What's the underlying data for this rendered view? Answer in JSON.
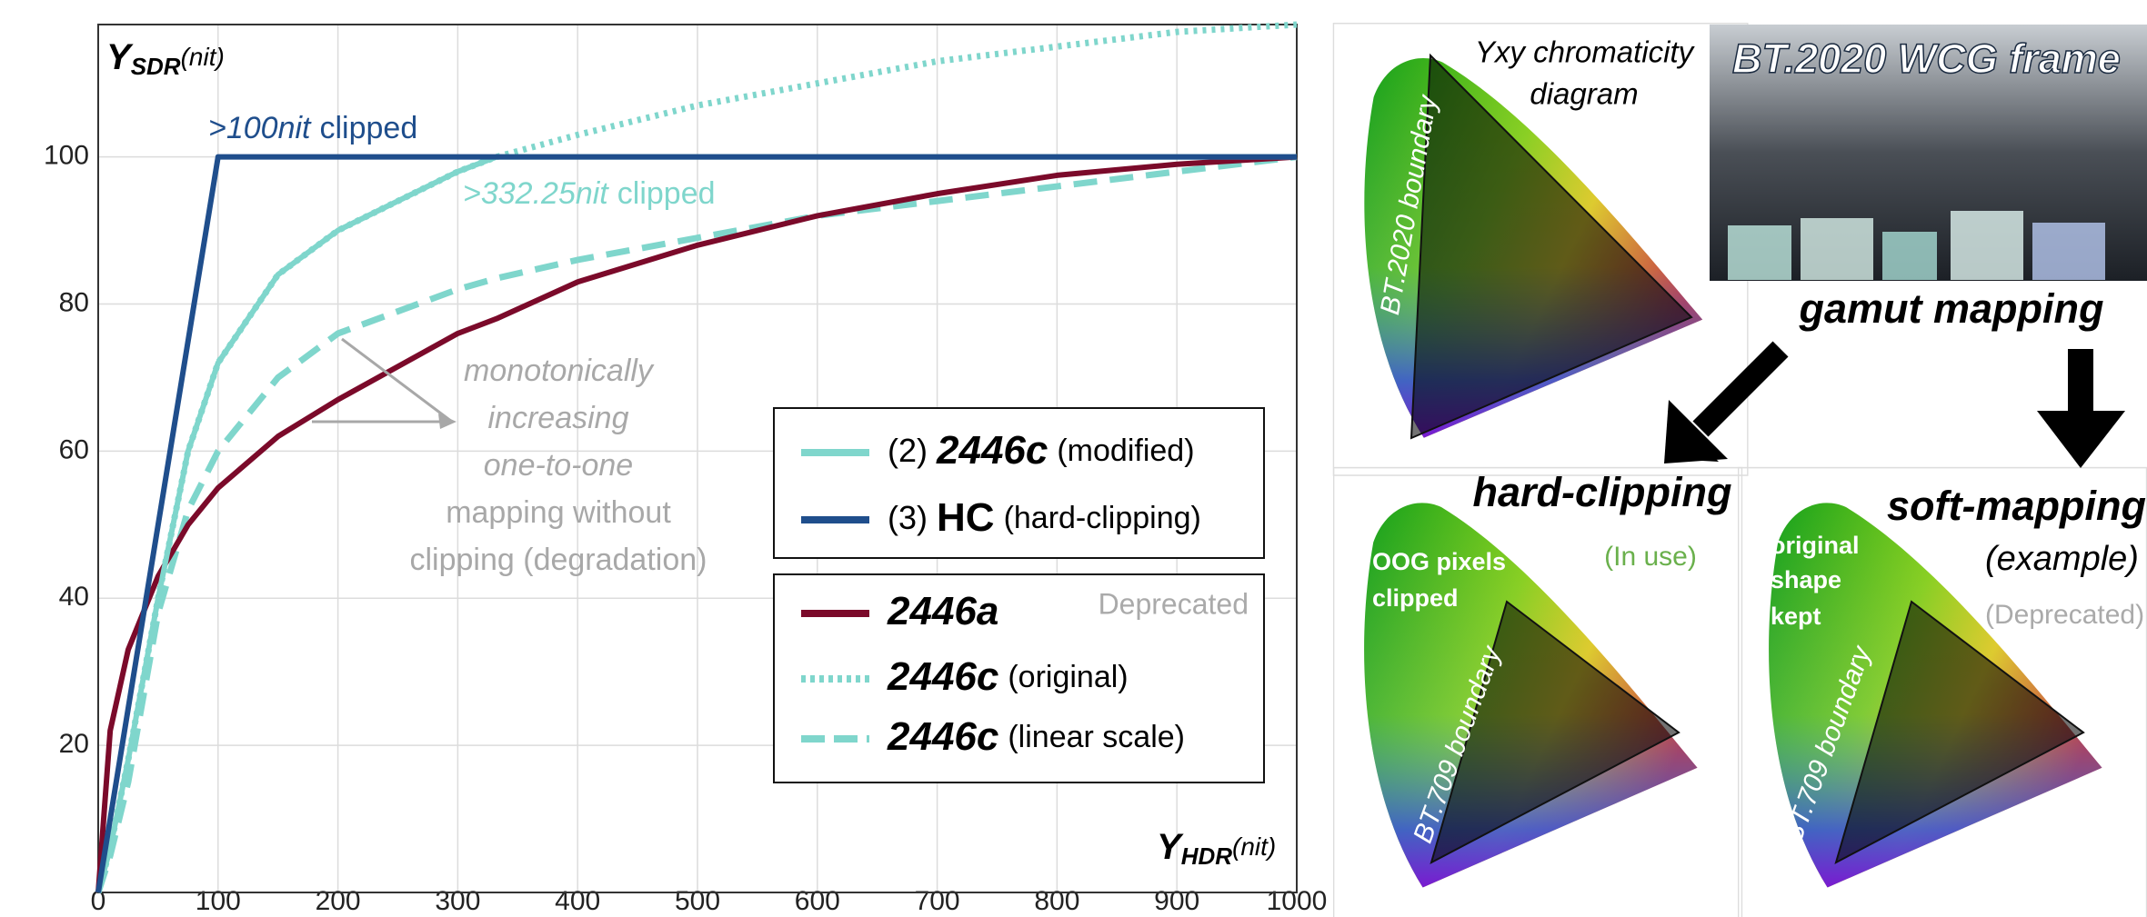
{
  "chart_data": {
    "type": "line",
    "ylabel": {
      "main": "Y",
      "sub": "SDR",
      "unit": "(nit)"
    },
    "xlabel": {
      "main": "Y",
      "sub": "HDR",
      "unit": "(nit)"
    },
    "x": [
      0,
      10,
      25,
      50,
      75,
      100,
      150,
      200,
      300,
      332.25,
      400,
      500,
      600,
      700,
      800,
      900,
      1000
    ],
    "series": [
      {
        "name": "2446c",
        "legend_prefix": "(2)",
        "legend_suffix": "(modified)",
        "color": "#7fd6cc",
        "style": "solid",
        "values": [
          0,
          6,
          18,
          40,
          60,
          72,
          84,
          90,
          98,
          100,
          100,
          100,
          100,
          100,
          100,
          100,
          100
        ]
      },
      {
        "name": "HC",
        "legend_prefix": "(3)",
        "legend_suffix": "(hard-clipping)",
        "color": "#1f4e8c",
        "style": "solid",
        "values": [
          0,
          10,
          25,
          50,
          75,
          100,
          100,
          100,
          100,
          100,
          100,
          100,
          100,
          100,
          100,
          100,
          100
        ]
      },
      {
        "name": "2446a",
        "color": "#7b0a2a",
        "style": "solid",
        "values": [
          0,
          22,
          33,
          43,
          50,
          55,
          62,
          67,
          76,
          78,
          83,
          88,
          92,
          95,
          97.5,
          99,
          100
        ]
      },
      {
        "name": "2446c",
        "legend_suffix": "(original)",
        "color": "#7fd6cc",
        "style": "dotted",
        "values": [
          0,
          6,
          18,
          40,
          60,
          72,
          84,
          90,
          98,
          100,
          103,
          107,
          110,
          113,
          115,
          117,
          118
        ]
      },
      {
        "name": "2446c",
        "legend_suffix": "(linear scale)",
        "color": "#7fd6cc",
        "style": "dashed",
        "values": [
          0,
          5,
          15,
          38,
          52,
          60,
          70,
          76,
          82,
          83.5,
          86,
          89,
          92,
          94,
          96,
          98,
          100
        ]
      }
    ],
    "xlim": [
      0,
      1000
    ],
    "ylim": [
      0,
      118
    ],
    "xticks": [
      0,
      100,
      200,
      300,
      400,
      500,
      600,
      700,
      800,
      900,
      1000
    ],
    "yticks": [
      20,
      40,
      60,
      80,
      100
    ],
    "grid": true,
    "annotations": {
      "hc_clip": [
        ">100nit",
        "clipped"
      ],
      "mod_clip": [
        ">332.25nit",
        "clipped"
      ],
      "monotonic": [
        "monotonically",
        "increasing",
        "one-to-one",
        "mapping without",
        "clipping (degradation)"
      ],
      "deprecated": "Deprecated"
    }
  },
  "diagram": {
    "chromaticity_label": [
      "Yxy chromaticity",
      "diagram"
    ],
    "frame_label": "BT.2020 WCG frame",
    "gamut_mapping": "gamut mapping",
    "bt2020_boundary": "BT.2020 boundary",
    "hard_clipping": {
      "title": "hard-clipping",
      "status": "(In use)",
      "note": [
        "OOG pixels",
        "clipped"
      ],
      "boundary": "BT.709 boundary"
    },
    "soft_mapping": {
      "title": "soft-mapping",
      "status": [
        "(example)",
        "(Deprecated)"
      ],
      "note": [
        "original",
        "shape",
        "kept"
      ],
      "boundary": "BT.709 boundary"
    }
  }
}
